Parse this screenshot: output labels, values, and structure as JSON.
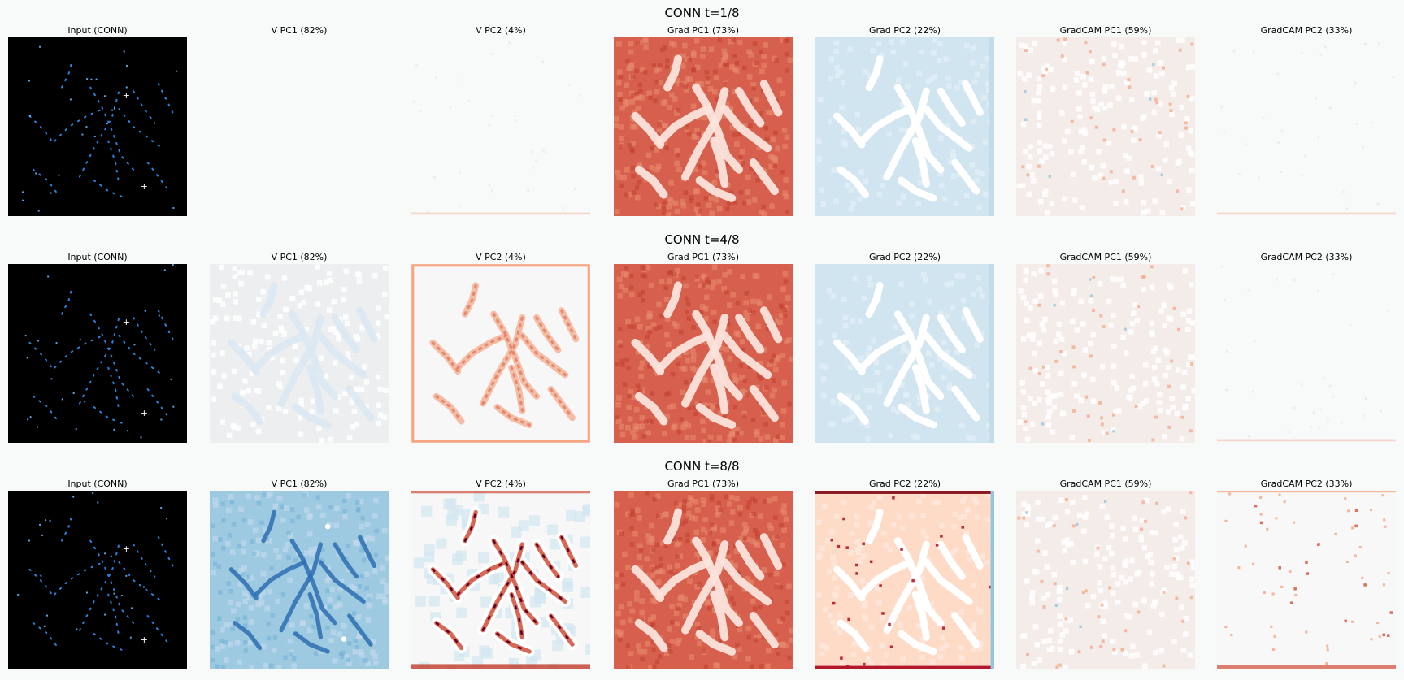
{
  "figure": {
    "rows": [
      {
        "title": "CONN  t=1/8",
        "panels": [
          {
            "title": "Input (CONN)",
            "map": "input"
          },
          {
            "title": "V PC1 (82%)",
            "map": "blank"
          },
          {
            "title": "V PC2 (4%)",
            "map": "faint"
          },
          {
            "title": "Grad PC1 (73%)",
            "map": "red-strong"
          },
          {
            "title": "Grad PC2 (22%)",
            "map": "blue-light"
          },
          {
            "title": "GradCAM PC1 (59%)",
            "map": "pale-speckle"
          },
          {
            "title": "GradCAM PC2 (33%)",
            "map": "faint"
          }
        ]
      },
      {
        "title": "CONN  t=4/8",
        "panels": [
          {
            "title": "Input (CONN)",
            "map": "input"
          },
          {
            "title": "V PC1 (82%)",
            "map": "gray-light"
          },
          {
            "title": "V PC2 (4%)",
            "map": "red-strokes"
          },
          {
            "title": "Grad PC1 (73%)",
            "map": "red-strong"
          },
          {
            "title": "Grad PC2 (22%)",
            "map": "blue-light"
          },
          {
            "title": "GradCAM PC1 (59%)",
            "map": "pale-speckle"
          },
          {
            "title": "GradCAM PC2 (33%)",
            "map": "faint"
          }
        ]
      },
      {
        "title": "CONN  t=8/8",
        "panels": [
          {
            "title": "Input (CONN)",
            "map": "input"
          },
          {
            "title": "V PC1 (82%)",
            "map": "blue-strong"
          },
          {
            "title": "V PC2 (4%)",
            "map": "red-blue-strokes"
          },
          {
            "title": "Grad PC1 (73%)",
            "map": "red-strong"
          },
          {
            "title": "Grad PC2 (22%)",
            "map": "orange"
          },
          {
            "title": "GradCAM PC1 (59%)",
            "map": "pale-speckle"
          },
          {
            "title": "GradCAM PC2 (33%)",
            "map": "dots"
          }
        ]
      }
    ],
    "colors": {
      "background": "#f8f9f9",
      "input_background": "#000000",
      "diverging_negative": "#2166ac",
      "diverging_neutral": "#f7f7f7",
      "diverging_positive": "#b2182b"
    }
  }
}
